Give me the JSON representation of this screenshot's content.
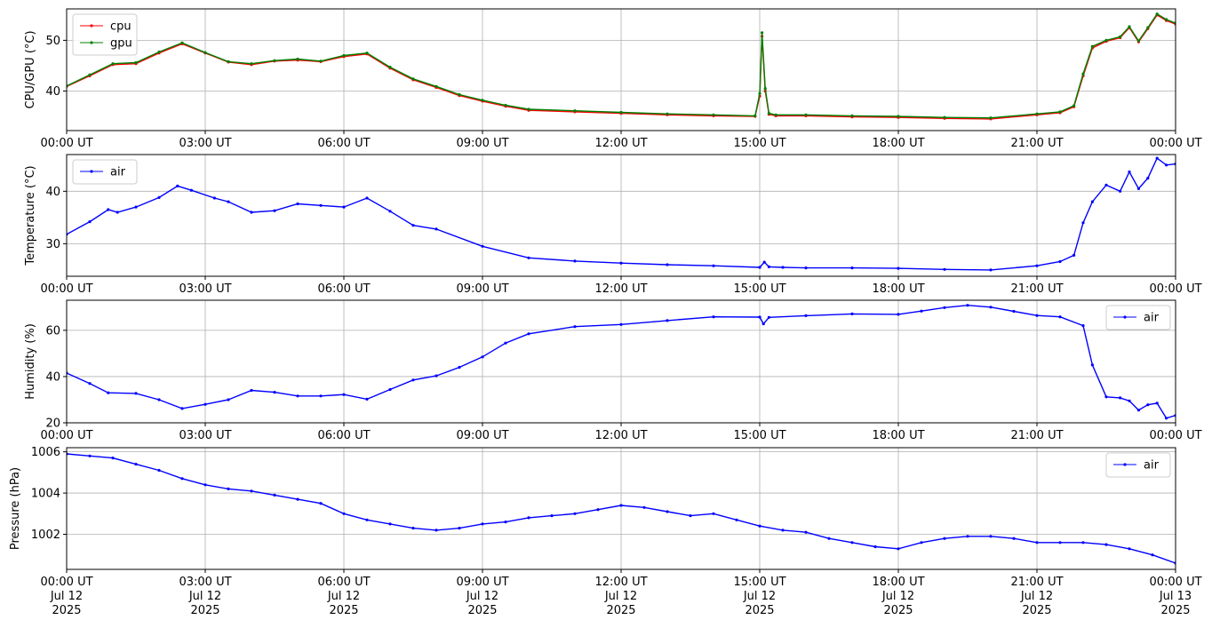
{
  "x_ticks": [
    "00:00 UT",
    "03:00 UT",
    "06:00 UT",
    "09:00 UT",
    "12:00 UT",
    "15:00 UT",
    "18:00 UT",
    "21:00 UT",
    "00:00 UT"
  ],
  "x_date_lines": [
    [
      "Jul 12",
      "2025"
    ],
    [
      "Jul 12",
      "2025"
    ],
    [
      "Jul 12",
      "2025"
    ],
    [
      "Jul 12",
      "2025"
    ],
    [
      "Jul 12",
      "2025"
    ],
    [
      "Jul 12",
      "2025"
    ],
    [
      "Jul 12",
      "2025"
    ],
    [
      "Jul 12",
      "2025"
    ],
    [
      "Jul 13",
      "2025"
    ]
  ],
  "chart_data": [
    {
      "type": "line",
      "ylabel": "CPU/GPU (°C)",
      "xlim": [
        "2025-07-12T00:00Z",
        "2025-07-13T00:00Z"
      ],
      "x_hours": [
        0,
        0.5,
        1,
        1.5,
        2,
        2.5,
        3,
        3.5,
        4,
        4.5,
        5,
        5.5,
        6,
        6.5,
        7,
        7.5,
        8,
        8.5,
        9,
        9.5,
        10,
        11,
        12,
        13,
        14,
        14.9,
        15,
        15.05,
        15.12,
        15.2,
        15.35,
        16,
        17,
        18,
        19,
        20,
        21,
        21.5,
        21.8,
        22,
        22.2,
        22.5,
        22.8,
        23,
        23.2,
        23.4,
        23.6,
        23.8,
        24
      ],
      "ylim": [
        32.2,
        56.2
      ],
      "yticks": [
        40,
        50
      ],
      "legend": "top-left",
      "grid": true,
      "series": [
        {
          "name": "cpu",
          "color": "#ff0000",
          "values": [
            40.9,
            43,
            45.2,
            45.4,
            47.5,
            49.3,
            47.5,
            45.7,
            45.2,
            45.9,
            46.1,
            45.8,
            46.8,
            47.3,
            44.5,
            42.2,
            40.7,
            39.1,
            38,
            37,
            36.2,
            35.9,
            35.6,
            35.3,
            35.1,
            35,
            39,
            50.8,
            40,
            35.4,
            35.1,
            35.1,
            34.9,
            34.8,
            34.6,
            34.5,
            35.3,
            35.7,
            36.9,
            43,
            48.5,
            49.8,
            50.5,
            52.5,
            49.7,
            52.3,
            55,
            53.9,
            53.2
          ]
        },
        {
          "name": "gpu",
          "color": "#008000",
          "values": [
            41,
            43.2,
            45.4,
            45.6,
            47.7,
            49.5,
            47.6,
            45.8,
            45.4,
            46,
            46.3,
            45.9,
            47,
            47.5,
            44.7,
            42.4,
            40.9,
            39.3,
            38.2,
            37.2,
            36.4,
            36.1,
            35.8,
            35.5,
            35.3,
            35.1,
            39.5,
            51.5,
            40.5,
            35.6,
            35.3,
            35.3,
            35.1,
            35,
            34.8,
            34.7,
            35.5,
            35.9,
            37.1,
            43.4,
            48.8,
            50,
            50.7,
            52.7,
            49.9,
            52.5,
            55.2,
            54.1,
            53.4
          ]
        }
      ]
    },
    {
      "type": "line",
      "ylabel": "Temperature (°C)",
      "xlim": [
        "2025-07-12T00:00Z",
        "2025-07-13T00:00Z"
      ],
      "x_hours": [
        0,
        0.5,
        0.9,
        1.1,
        1.5,
        2,
        2.4,
        2.7,
        3.2,
        3.5,
        4,
        4.5,
        5,
        5.5,
        6,
        6.5,
        7,
        7.5,
        8,
        9,
        10,
        11,
        12,
        13,
        14,
        15,
        15.1,
        15.2,
        15.5,
        16,
        17,
        18,
        19,
        20,
        21,
        21.5,
        21.8,
        22,
        22.2,
        22.5,
        22.8,
        23,
        23.2,
        23.4,
        23.6,
        23.8,
        24
      ],
      "ylim": [
        23.8,
        47
      ],
      "yticks": [
        30,
        40
      ],
      "legend": "top-left",
      "grid": true,
      "series": [
        {
          "name": "air",
          "color": "#0000ff",
          "values": [
            31.8,
            34.2,
            36.5,
            36,
            37,
            38.8,
            41,
            40.2,
            38.7,
            38,
            36,
            36.3,
            37.6,
            37.3,
            37,
            38.7,
            36.2,
            33.5,
            32.8,
            29.5,
            27.3,
            26.7,
            26.3,
            26,
            25.8,
            25.5,
            26.5,
            25.6,
            25.5,
            25.4,
            25.4,
            25.3,
            25.1,
            25,
            25.8,
            26.6,
            27.8,
            34,
            38,
            41.2,
            40,
            43.7,
            40.5,
            42.5,
            46.3,
            45,
            45.2
          ]
        }
      ]
    },
    {
      "type": "line",
      "ylabel": "Humidity (%)",
      "xlim": [
        "2025-07-12T00:00Z",
        "2025-07-13T00:00Z"
      ],
      "x_hours": [
        0,
        0.5,
        0.9,
        1.5,
        2,
        2.5,
        3,
        3.5,
        4,
        4.5,
        5,
        5.5,
        6,
        6.5,
        7,
        7.5,
        8,
        8.5,
        9,
        9.5,
        10,
        11,
        12,
        13,
        14,
        15,
        15.08,
        15.2,
        16,
        17,
        18,
        18.5,
        19,
        19.5,
        20,
        20.5,
        21,
        21.5,
        22,
        22.2,
        22.5,
        22.8,
        23,
        23.2,
        23.4,
        23.6,
        23.8,
        24
      ],
      "ylim": [
        20,
        73
      ],
      "yticks": [
        20,
        40,
        60
      ],
      "legend": "top-right",
      "grid": true,
      "series": [
        {
          "name": "air",
          "color": "#0000ff",
          "values": [
            41.5,
            37,
            33,
            32.7,
            30,
            26.2,
            28,
            30,
            34,
            33.2,
            31.6,
            31.6,
            32.2,
            30.2,
            34.4,
            38.5,
            40.3,
            44,
            48.5,
            54.5,
            58.5,
            61.6,
            62.5,
            64.2,
            65.8,
            65.7,
            62.8,
            65.6,
            66.3,
            67.1,
            66.9,
            68.3,
            69.8,
            70.8,
            70,
            68.2,
            66.4,
            65.8,
            62,
            45,
            31.2,
            30.8,
            29.5,
            25.5,
            27.8,
            28.5,
            22,
            23.2
          ]
        }
      ]
    },
    {
      "type": "line",
      "ylabel": "Pressure (hPa)",
      "xlim": [
        "2025-07-12T00:00Z",
        "2025-07-13T00:00Z"
      ],
      "x_hours": [
        0,
        0.5,
        1,
        1.5,
        2,
        2.5,
        3,
        3.5,
        4,
        4.5,
        5,
        5.5,
        6,
        6.5,
        7,
        7.5,
        8,
        8.5,
        9,
        9.5,
        10,
        10.5,
        11,
        11.5,
        12,
        12.5,
        13,
        13.5,
        14,
        14.5,
        15,
        15.5,
        16,
        16.5,
        17,
        17.5,
        18,
        18.5,
        19,
        19.5,
        20,
        20.5,
        21,
        21.5,
        22,
        22.5,
        23,
        23.5,
        24
      ],
      "ylim": [
        1000.3,
        1006.2
      ],
      "yticks": [
        1002,
        1004,
        1006
      ],
      "legend": "top-right",
      "grid": true,
      "series": [
        {
          "name": "air",
          "color": "#0000ff",
          "values": [
            1005.9,
            1005.8,
            1005.7,
            1005.4,
            1005.1,
            1004.7,
            1004.4,
            1004.2,
            1004.1,
            1003.9,
            1003.7,
            1003.5,
            1003,
            1002.7,
            1002.5,
            1002.3,
            1002.2,
            1002.3,
            1002.5,
            1002.6,
            1002.8,
            1002.9,
            1003,
            1003.2,
            1003.4,
            1003.3,
            1003.1,
            1002.9,
            1003,
            1002.7,
            1002.4,
            1002.2,
            1002.1,
            1001.8,
            1001.6,
            1001.4,
            1001.3,
            1001.6,
            1001.8,
            1001.9,
            1001.9,
            1001.8,
            1001.6,
            1001.6,
            1001.6,
            1001.5,
            1001.3,
            1001,
            1000.6
          ]
        }
      ]
    }
  ]
}
